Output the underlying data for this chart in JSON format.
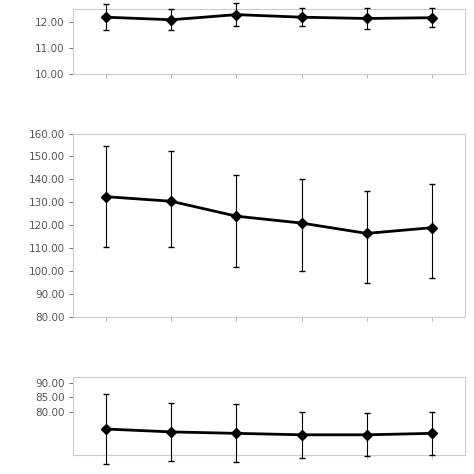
{
  "iop": {
    "y": [
      12.2,
      12.1,
      12.3,
      12.2,
      12.15,
      12.18
    ],
    "yerr_upper": [
      0.5,
      0.4,
      0.45,
      0.35,
      0.4,
      0.38
    ],
    "yerr_lower": [
      0.5,
      0.4,
      0.45,
      0.35,
      0.4,
      0.38
    ],
    "ylim": [
      10.0,
      12.5
    ],
    "yticks": [
      10.0,
      11.0,
      12.0
    ]
  },
  "sbp": {
    "y": [
      132.5,
      130.5,
      124.0,
      121.0,
      116.5,
      119.0
    ],
    "yerr_upper": [
      22.0,
      22.0,
      18.0,
      19.0,
      18.5,
      19.0
    ],
    "yerr_lower": [
      22.0,
      20.0,
      22.0,
      21.0,
      21.5,
      22.0
    ],
    "ylim": [
      80.0,
      160.0
    ],
    "yticks": [
      80.0,
      90.0,
      100.0,
      110.0,
      120.0,
      130.0,
      140.0,
      150.0,
      160.0
    ]
  },
  "dbp": {
    "y": [
      74.0,
      73.0,
      72.5,
      72.0,
      72.0,
      72.5
    ],
    "yerr_upper": [
      12.0,
      10.0,
      10.0,
      8.0,
      7.5,
      7.5
    ],
    "yerr_lower": [
      12.0,
      10.0,
      10.0,
      8.0,
      7.5,
      7.5
    ],
    "ylim": [
      65.0,
      92.0
    ],
    "yticks": [
      80.0,
      85.0,
      90.0
    ]
  },
  "x": [
    0,
    1,
    2,
    3,
    4,
    5
  ],
  "line_color": "#000000",
  "marker": "D",
  "markersize": 5,
  "linewidth": 2.0,
  "capsize": 2,
  "elinewidth": 0.8,
  "background_color": "#ffffff",
  "panel_bg": "#ffffff",
  "spine_color": "#aaaaaa",
  "tick_color": "#555555",
  "tick_fontsize": 7.5,
  "border_color": "#cccccc"
}
